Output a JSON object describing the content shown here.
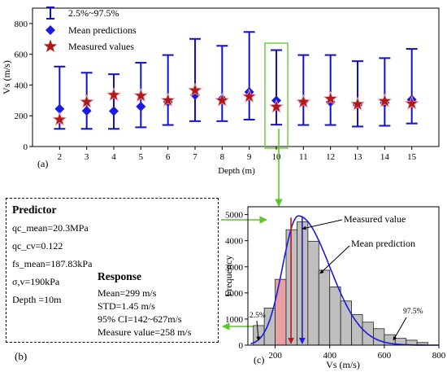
{
  "chart_data": [
    {
      "id": "a",
      "type": "errorbar",
      "panel_label": "(a)",
      "xlabel": "Depth (m)",
      "ylabel": "Vs (m/s)",
      "xlim": [
        1,
        16
      ],
      "ylim": [
        0,
        900
      ],
      "xticks": [
        2,
        3,
        4,
        5,
        6,
        7,
        8,
        9,
        10,
        11,
        12,
        13,
        14,
        15
      ],
      "yticks": [
        0,
        200,
        400,
        600,
        800
      ],
      "legend_position": "top-left",
      "legend": [
        {
          "label": "2.5%~97.5%",
          "marker": "errorbar"
        },
        {
          "label": "Mean predictions",
          "marker": "diamond"
        },
        {
          "label": "Measured values",
          "marker": "star"
        }
      ],
      "x": [
        2,
        3,
        4,
        5,
        6,
        7,
        8,
        9,
        10,
        11,
        12,
        13,
        14,
        15
      ],
      "lower": [
        115,
        115,
        115,
        125,
        140,
        165,
        165,
        175,
        142,
        140,
        140,
        130,
        135,
        150
      ],
      "upper": [
        520,
        480,
        470,
        545,
        595,
        700,
        655,
        745,
        627,
        595,
        595,
        555,
        575,
        635
      ],
      "mean": [
        245,
        232,
        230,
        260,
        290,
        335,
        310,
        355,
        299,
        290,
        290,
        270,
        285,
        305
      ],
      "measured": [
        175,
        290,
        335,
        330,
        300,
        365,
        300,
        325,
        258,
        290,
        310,
        275,
        295,
        280
      ],
      "highlight_x": 10,
      "colors": {
        "errorbar": "#1010cc",
        "mean": "#1a1ae6",
        "measured": "#b01818",
        "highlight": "#5ec42c"
      }
    },
    {
      "id": "c",
      "type": "histogram",
      "panel_label": "(c)",
      "xlabel": "Vs (m/s)",
      "ylabel": "Frequency",
      "xlim": [
        100,
        800
      ],
      "ylim": [
        0,
        5300
      ],
      "xticks": [
        200,
        400,
        600,
        800
      ],
      "yticks": [
        0,
        1000,
        2000,
        3000,
        4000,
        5000
      ],
      "bin_width": 40,
      "bins": [
        140,
        180,
        220,
        260,
        300,
        340,
        380,
        420,
        460,
        500,
        540,
        580,
        620,
        660,
        700,
        740
      ],
      "counts": [
        750,
        1420,
        2520,
        4420,
        4720,
        3980,
        2870,
        2230,
        1690,
        1170,
        880,
        630,
        400,
        260,
        190,
        100
      ],
      "highlight_bin": 220,
      "curve": {
        "peak_x": 285,
        "peak_y": 4950,
        "sigma_left": 58,
        "sigma_right": 115
      },
      "annotations": {
        "measured_value_label": "Measured value",
        "mean_prediction_label": "Mean prediction",
        "p_low_label": "2.5%",
        "p_high_label": "97.5%",
        "measured_value": 258,
        "mean_prediction": 299,
        "p_low": 142,
        "p_high": 627
      },
      "colors": {
        "bar": "#bfbfbf",
        "highlight_bar": "#e8a0a0",
        "curve": "#1a1ae6",
        "measured_line": "#c01818",
        "mean_line": "#1a1ae6",
        "arrow": "#000000"
      }
    }
  ],
  "info_box": {
    "panel_label": "(b)",
    "predictor_heading": "Predictor",
    "predictor_lines": [
      "qc_mean=20.3MPa",
      "qc_cv=0.122",
      "fs_mean=187.83kPa",
      "σ,v=190kPa",
      "Depth =10m"
    ],
    "response_heading": "Response",
    "response_lines": [
      "Mean=299 m/s",
      "STD=1.45 m/s",
      "95% CI=142~627m/s",
      "Measure value=258 m/s"
    ]
  },
  "connector_color": "#5ec42c"
}
